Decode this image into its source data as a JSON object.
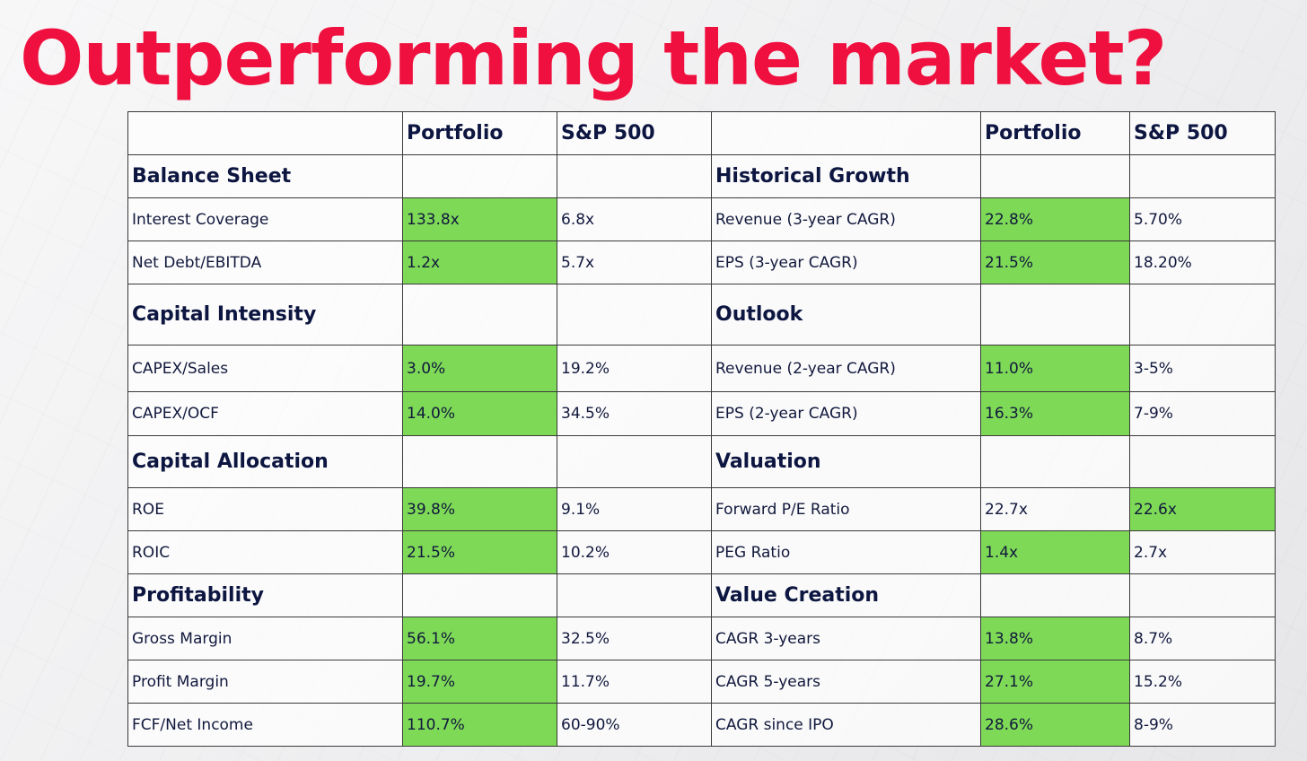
{
  "title": "Outperforming the market?",
  "colors": {
    "title": "#f0103f",
    "highlight": "#7ed957",
    "text": "#11183c"
  },
  "header": {
    "col1": "Portfolio",
    "col2": "S&P 500"
  },
  "rows": [
    {
      "type": "section",
      "left": {
        "label": "Balance Sheet"
      },
      "right": {
        "label": "Historical Growth"
      }
    },
    {
      "type": "data",
      "left": {
        "label": "Interest Coverage",
        "p": "133.8x",
        "s": "6.8x",
        "hp": true,
        "hs": false
      },
      "right": {
        "label": "Revenue (3-year CAGR)",
        "p": "22.8%",
        "s": "5.70%",
        "hp": true,
        "hs": false
      }
    },
    {
      "type": "data",
      "left": {
        "label": "Net Debt/EBITDA",
        "p": "1.2x",
        "s": "5.7x",
        "hp": true,
        "hs": false
      },
      "right": {
        "label": "EPS (3-year CAGR)",
        "p": "21.5%",
        "s": "18.20%",
        "hp": true,
        "hs": false
      }
    },
    {
      "type": "section",
      "left": {
        "label": "Capital Intensity"
      },
      "right": {
        "label": "Outlook"
      }
    },
    {
      "type": "data",
      "left": {
        "label": "CAPEX/Sales",
        "p": "3.0%",
        "s": "19.2%",
        "hp": true,
        "hs": false
      },
      "right": {
        "label": "Revenue (2-year CAGR)",
        "p": "11.0%",
        "s": "3-5%",
        "hp": true,
        "hs": false
      }
    },
    {
      "type": "data",
      "left": {
        "label": "CAPEX/OCF",
        "p": "14.0%",
        "s": "34.5%",
        "hp": true,
        "hs": false
      },
      "right": {
        "label": "EPS (2-year CAGR)",
        "p": "16.3%",
        "s": "7-9%",
        "hp": true,
        "hs": false
      }
    },
    {
      "type": "section",
      "left": {
        "label": "Capital Allocation"
      },
      "right": {
        "label": "Valuation"
      }
    },
    {
      "type": "data",
      "left": {
        "label": "ROE",
        "p": "39.8%",
        "s": "9.1%",
        "hp": true,
        "hs": false
      },
      "right": {
        "label": "Forward P/E Ratio",
        "p": "22.7x",
        "s": "22.6x",
        "hp": false,
        "hs": true
      }
    },
    {
      "type": "data",
      "left": {
        "label": "ROIC",
        "p": "21.5%",
        "s": "10.2%",
        "hp": true,
        "hs": false
      },
      "right": {
        "label": "PEG Ratio",
        "p": "1.4x",
        "s": "2.7x",
        "hp": true,
        "hs": false
      }
    },
    {
      "type": "section",
      "left": {
        "label": "Profitability"
      },
      "right": {
        "label": "Value Creation"
      }
    },
    {
      "type": "data",
      "left": {
        "label": "Gross Margin",
        "p": "56.1%",
        "s": "32.5%",
        "hp": true,
        "hs": false
      },
      "right": {
        "label": "CAGR 3-years",
        "p": "13.8%",
        "s": "8.7%",
        "hp": true,
        "hs": false
      }
    },
    {
      "type": "data",
      "left": {
        "label": "Profit Margin",
        "p": "19.7%",
        "s": "11.7%",
        "hp": true,
        "hs": false
      },
      "right": {
        "label": "CAGR 5-years",
        "p": "27.1%",
        "s": "15.2%",
        "hp": true,
        "hs": false
      }
    },
    {
      "type": "data",
      "left": {
        "label": "FCF/Net Income",
        "p": "110.7%",
        "s": "60-90%",
        "hp": true,
        "hs": false
      },
      "right": {
        "label": "CAGR since IPO",
        "p": "28.6%",
        "s": "8-9%",
        "hp": true,
        "hs": false
      }
    }
  ]
}
